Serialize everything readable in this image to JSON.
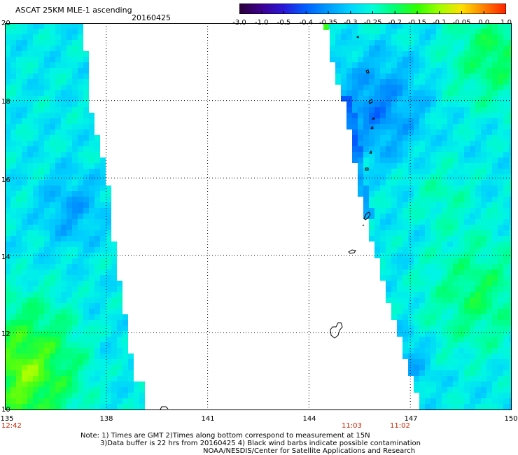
{
  "header": {
    "title": "ASCAT 25KM MLE-1 ascending",
    "date": "20160425"
  },
  "colorbar": {
    "ticks": [
      "-3.0",
      "-1.0",
      "-0.5",
      "-0.4",
      "-0.35",
      "-0.3",
      "-0.25",
      "-0.2",
      "-0.15",
      "-0.1",
      "-0.05",
      "0.0",
      "1.0"
    ],
    "colors": [
      "#2a0038",
      "#3c0090",
      "#2a18d8",
      "#0060ff",
      "#009cff",
      "#00d4ff",
      "#00ffd8",
      "#00ff70",
      "#30ff00",
      "#a0ff00",
      "#ffe000",
      "#ff8000",
      "#ff2000"
    ]
  },
  "axes": {
    "lat_ticks": [
      "20",
      "18",
      "16",
      "14",
      "12",
      "10"
    ],
    "lon_ticks": [
      "135",
      "138",
      "141",
      "144",
      "147",
      "150"
    ]
  },
  "times": {
    "left": "12:42",
    "mid": "11:03",
    "right": "11:02"
  },
  "footer": {
    "line1": "Note: 1) Times are GMT 2)Times along bottom correspond to measurement at 15N",
    "line2": "3)Data buffer is 22 hrs from 20160425 4) Black wind barbs indicate possible contamination",
    "line3": "NOAA/NESDIS/Center for Satellite Applications and Research"
  }
}
